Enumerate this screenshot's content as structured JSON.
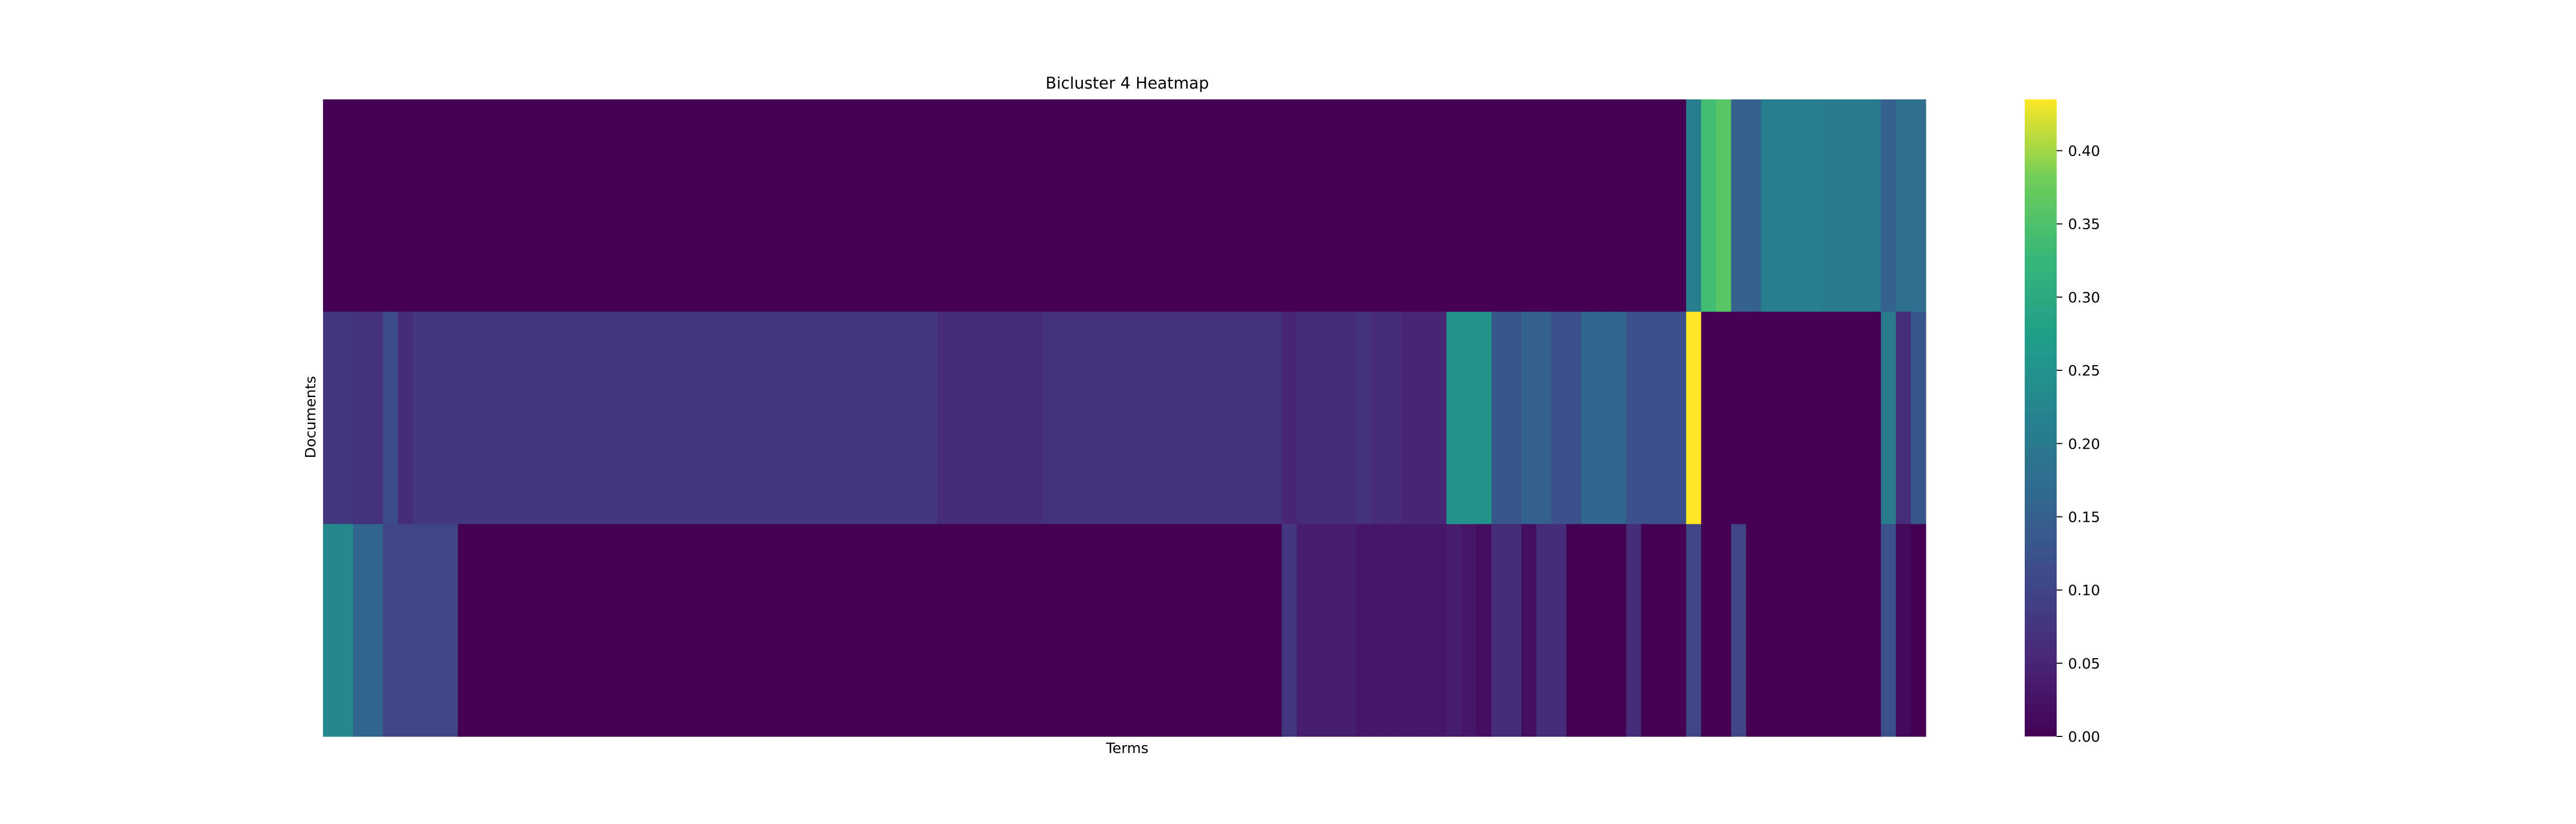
{
  "chart_data": {
    "type": "heatmap",
    "title": "Bicluster 4 Heatmap",
    "xlabel": "Terms",
    "ylabel": "Documents",
    "rows": 3,
    "columns": 107,
    "colorbar": {
      "colormap": "viridis",
      "range": [
        0,
        0.435
      ],
      "ticks": [
        "0.00",
        "0.05",
        "0.10",
        "0.15",
        "0.20",
        "0.25",
        "0.30",
        "0.35",
        "0.40"
      ],
      "tick_values": [
        0,
        0.05,
        0.1,
        0.15,
        0.2,
        0.25,
        0.3,
        0.35,
        0.4
      ]
    },
    "values": [
      [
        0,
        0,
        0,
        0,
        0,
        0,
        0,
        0,
        0,
        0,
        0,
        0,
        0,
        0,
        0,
        0,
        0,
        0,
        0,
        0,
        0,
        0,
        0,
        0,
        0,
        0,
        0,
        0,
        0,
        0,
        0,
        0,
        0,
        0,
        0,
        0,
        0,
        0,
        0,
        0,
        0,
        0,
        0,
        0,
        0,
        0,
        0,
        0,
        0,
        0,
        0,
        0,
        0,
        0,
        0,
        0,
        0,
        0,
        0,
        0,
        0,
        0,
        0,
        0,
        0,
        0,
        0,
        0,
        0,
        0,
        0,
        0,
        0,
        0,
        0,
        0,
        0,
        0,
        0,
        0,
        0,
        0,
        0,
        0,
        0,
        0,
        0,
        0,
        0,
        0,
        0,
        0.21,
        0.34,
        0.36,
        0.15,
        0.15,
        0.21,
        0.21,
        0.21,
        0.21,
        0.2,
        0.2,
        0.2,
        0.2,
        0.15,
        0.18,
        0.18
      ],
      [
        0.08,
        0.08,
        0.07,
        0.07,
        0.11,
        0.06,
        0.08,
        0.08,
        0.08,
        0.08,
        0.08,
        0.08,
        0.08,
        0.08,
        0.08,
        0.08,
        0.08,
        0.08,
        0.08,
        0.08,
        0.08,
        0.08,
        0.08,
        0.08,
        0.08,
        0.08,
        0.08,
        0.08,
        0.08,
        0.08,
        0.08,
        0.08,
        0.08,
        0.08,
        0.08,
        0.08,
        0.08,
        0.08,
        0.08,
        0.08,
        0.08,
        0.06,
        0.06,
        0.06,
        0.06,
        0.06,
        0.06,
        0.06,
        0.07,
        0.07,
        0.07,
        0.07,
        0.07,
        0.07,
        0.07,
        0.07,
        0.07,
        0.07,
        0.07,
        0.07,
        0.07,
        0.07,
        0.07,
        0.07,
        0.05,
        0.06,
        0.06,
        0.06,
        0.06,
        0.07,
        0.06,
        0.06,
        0.05,
        0.05,
        0.05,
        0.25,
        0.25,
        0.25,
        0.13,
        0.13,
        0.15,
        0.15,
        0.12,
        0.12,
        0.16,
        0.16,
        0.16,
        0.12,
        0.12,
        0.12,
        0.12,
        0.435,
        0,
        0,
        0,
        0,
        0,
        0,
        0,
        0,
        0,
        0,
        0,
        0,
        0.2,
        0.06,
        0.13
      ],
      [
        0.23,
        0.23,
        0.16,
        0.16,
        0.1,
        0.1,
        0.1,
        0.1,
        0.1,
        0,
        0,
        0,
        0,
        0,
        0,
        0,
        0,
        0,
        0,
        0,
        0,
        0,
        0,
        0,
        0,
        0,
        0,
        0,
        0,
        0,
        0,
        0,
        0,
        0,
        0,
        0,
        0,
        0,
        0,
        0,
        0,
        0,
        0,
        0,
        0,
        0,
        0,
        0,
        0,
        0,
        0,
        0,
        0,
        0,
        0,
        0,
        0,
        0,
        0,
        0,
        0,
        0,
        0,
        0,
        0.08,
        0.04,
        0.04,
        0.04,
        0.04,
        0.03,
        0.03,
        0.03,
        0.03,
        0.03,
        0.03,
        0.04,
        0.03,
        0.02,
        0.06,
        0.06,
        0.02,
        0.06,
        0.06,
        0,
        0,
        0,
        0,
        0.06,
        0,
        0,
        0,
        0.1,
        0,
        0,
        0.1,
        0,
        0,
        0,
        0,
        0,
        0,
        0,
        0,
        0,
        0.12,
        0.01,
        0
      ]
    ]
  }
}
